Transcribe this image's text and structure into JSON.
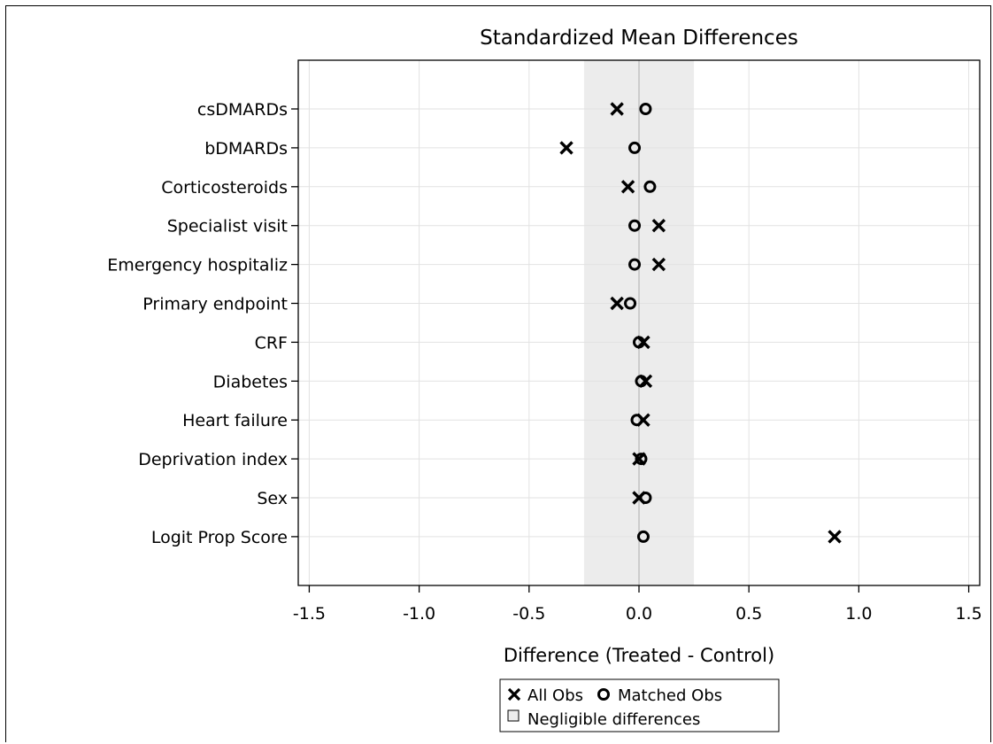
{
  "chart_data": {
    "type": "scatter",
    "title": "Standardized Mean Differences",
    "xlabel": "Difference (Treated - Control)",
    "ylabel": "",
    "xlim": [
      -1.55,
      1.55
    ],
    "xticks": [
      -1.5,
      -1.0,
      -0.5,
      0.0,
      0.5,
      1.0,
      1.5
    ],
    "xtick_labels": [
      "-1.5",
      "-1.0",
      "-0.5",
      "0.0",
      "0.5",
      "1.0",
      "1.5"
    ],
    "grid": true,
    "negligible_band": [
      -0.25,
      0.25
    ],
    "categories": [
      "csDMARDs",
      "bDMARDs",
      "Corticosteroids",
      "Specialist visit",
      "Emergency hospitaliz",
      "Primary endpoint",
      "CRF",
      "Diabetes",
      "Heart failure",
      "Deprivation index",
      "Sex",
      "Logit Prop Score"
    ],
    "series": [
      {
        "name": "All Obs",
        "marker": "x",
        "values": [
          -0.1,
          -0.33,
          -0.05,
          0.09,
          0.09,
          -0.1,
          0.02,
          0.03,
          0.02,
          0.0,
          0.0,
          0.89
        ]
      },
      {
        "name": "Matched Obs",
        "marker": "o",
        "values": [
          0.03,
          -0.02,
          0.05,
          -0.02,
          -0.02,
          -0.04,
          0.0,
          0.01,
          -0.01,
          0.01,
          0.03,
          0.02
        ]
      }
    ],
    "legend": {
      "position": "bottom",
      "items": [
        "All Obs",
        "Matched Obs",
        "Negligible differences"
      ]
    },
    "colors": {
      "markers": "#000000",
      "band": "#ececec",
      "grid": "#e2e2e2"
    }
  }
}
